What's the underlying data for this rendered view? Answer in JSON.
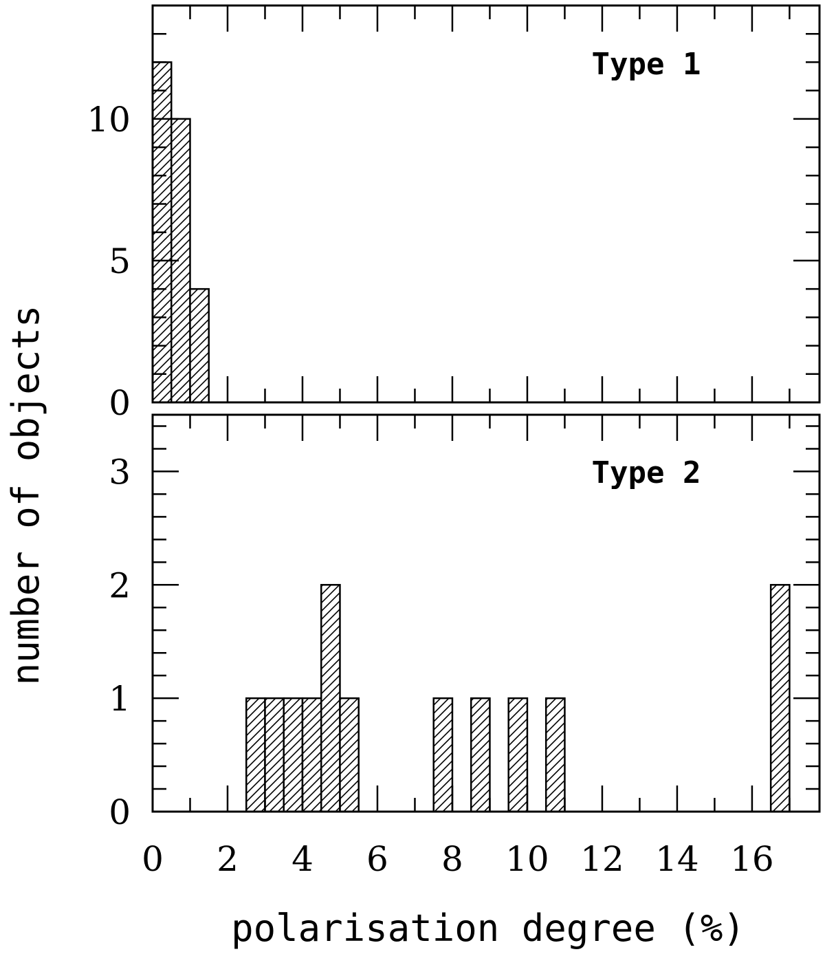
{
  "chart_data": {
    "type": "bar",
    "xlabel": "polarisation degree (%)",
    "ylabel": "number of objects",
    "xlim": [
      0,
      17.8
    ],
    "x_ticks": [
      0,
      2,
      4,
      6,
      8,
      10,
      12,
      14,
      16
    ],
    "bin_width": 0.5,
    "panels": [
      {
        "title": "Type 1",
        "ylim": [
          0,
          14
        ],
        "y_ticks": [
          0,
          5,
          10
        ],
        "bins": [
          {
            "x0": 0.0,
            "x1": 0.5,
            "count": 12
          },
          {
            "x0": 0.5,
            "x1": 1.0,
            "count": 10
          },
          {
            "x0": 1.0,
            "x1": 1.5,
            "count": 4
          }
        ]
      },
      {
        "title": "Type 2",
        "ylim": [
          0,
          3.5
        ],
        "y_ticks": [
          0,
          1,
          2,
          3
        ],
        "bins": [
          {
            "x0": 2.5,
            "x1": 3.0,
            "count": 1
          },
          {
            "x0": 3.0,
            "x1": 3.5,
            "count": 1
          },
          {
            "x0": 3.5,
            "x1": 4.0,
            "count": 1
          },
          {
            "x0": 4.0,
            "x1": 4.5,
            "count": 1
          },
          {
            "x0": 4.5,
            "x1": 5.0,
            "count": 2
          },
          {
            "x0": 5.0,
            "x1": 5.5,
            "count": 1
          },
          {
            "x0": 7.5,
            "x1": 8.0,
            "count": 1
          },
          {
            "x0": 8.5,
            "x1": 9.0,
            "count": 1
          },
          {
            "x0": 9.5,
            "x1": 10.0,
            "count": 1
          },
          {
            "x0": 10.5,
            "x1": 11.0,
            "count": 1
          },
          {
            "x0": 16.5,
            "x1": 17.0,
            "count": 2
          }
        ]
      }
    ]
  }
}
